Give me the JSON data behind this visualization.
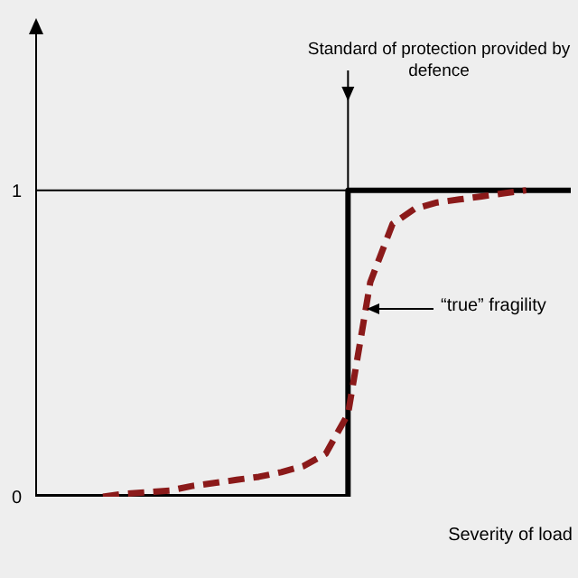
{
  "chart_data": {
    "type": "line",
    "xlabel": "Severity of load",
    "categories": [
      null,
      null,
      null,
      null,
      null,
      null,
      null,
      null,
      null,
      null,
      null,
      null,
      null,
      null,
      null,
      null,
      null,
      null,
      null,
      null,
      null,
      null,
      null,
      null,
      null
    ],
    "ylim": [
      0,
      1.55
    ],
    "yticks": [
      0,
      1
    ],
    "series": [
      {
        "type": "step",
        "color": "#000000",
        "line_style": "solid",
        "values": [
          0,
          0,
          0,
          0,
          0,
          0,
          0,
          0,
          0,
          0,
          0,
          0,
          0,
          0,
          1,
          1,
          1,
          1,
          1,
          1,
          1,
          1,
          1,
          1,
          1
        ]
      },
      {
        "color": "#8b1a1a",
        "line_style": "dashed",
        "values": [
          null,
          null,
          null,
          0,
          0.01,
          0.015,
          0.02,
          0.035,
          0.045,
          0.055,
          0.065,
          0.08,
          0.1,
          0.14,
          0.27,
          0.7,
          0.89,
          0.94,
          0.96,
          0.97,
          0.98,
          0.99,
          1,
          null,
          null
        ]
      }
    ],
    "ref_lines": [
      {
        "axis": "y",
        "value": 1,
        "color": "#000000"
      }
    ],
    "marker": "none",
    "annotations": [
      "Standard of protection provided by defence",
      "“true” fragility"
    ]
  }
}
